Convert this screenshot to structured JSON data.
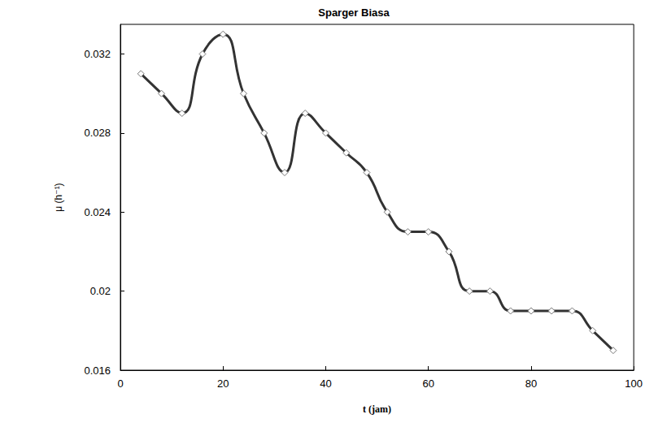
{
  "chart_data": {
    "type": "line",
    "title": "Sparger Biasa",
    "x_label": "t (jam)",
    "y_label": "μ (h⁻¹)",
    "x": [
      4,
      8,
      12,
      16,
      20,
      24,
      28,
      32,
      36,
      40,
      44,
      48,
      52,
      56,
      60,
      64,
      68,
      72,
      76,
      80,
      84,
      88,
      92,
      96
    ],
    "values": [
      0.031,
      0.03,
      0.029,
      0.032,
      0.033,
      0.03,
      0.028,
      0.026,
      0.029,
      0.028,
      0.027,
      0.026,
      0.024,
      0.023,
      0.023,
      0.022,
      0.02,
      0.02,
      0.019,
      0.019,
      0.019,
      0.019,
      0.018,
      0.017
    ],
    "color": "#333333",
    "marker": "diamond",
    "line_style": "solid",
    "xlim": [
      0,
      100
    ],
    "xticks": [
      0,
      20,
      40,
      60,
      80,
      100
    ],
    "ylim": [
      0.016,
      0.0335
    ],
    "yticks": [
      0.016,
      0.02,
      0.024,
      0.028,
      0.032
    ],
    "grid": false
  }
}
